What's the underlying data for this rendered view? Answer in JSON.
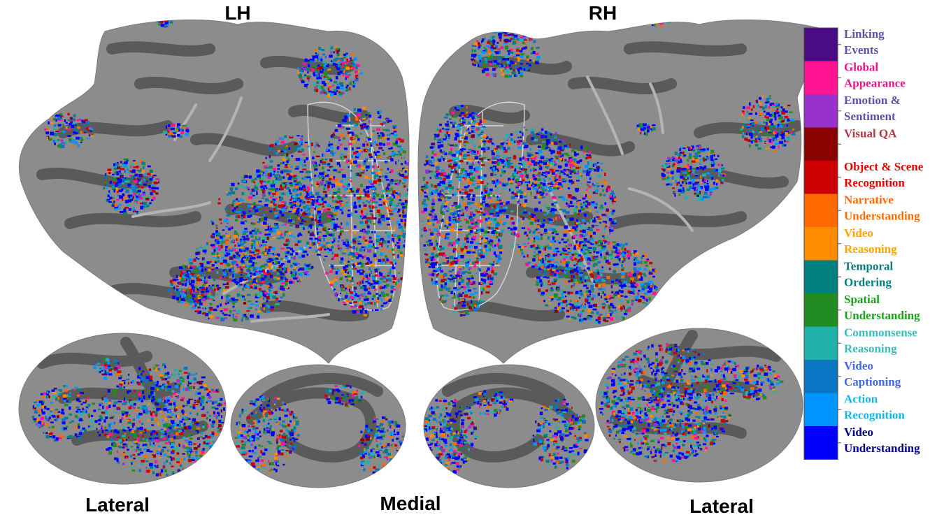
{
  "hemispheres": {
    "left": "LH",
    "right": "RH"
  },
  "views": {
    "lateral_left": "Lateral",
    "medial": "Medial",
    "lateral_right": "Lateral"
  },
  "legend": [
    {
      "line1": "Linking",
      "line2": "Events",
      "swatch": "#4b0a86",
      "text_color": "#5a52a8"
    },
    {
      "line1": "Global",
      "line2": "Appearance",
      "swatch": "#ff1493",
      "text_color": "#e8178a"
    },
    {
      "line1": "Emotion &",
      "line2": "Sentiment",
      "swatch": "#9932cc",
      "text_color": "#5a52a8"
    },
    {
      "line1": "Visual QA",
      "line2": "",
      "swatch": "#8b0000",
      "text_color": "#b03a48"
    },
    {
      "line1": "Object & Scene",
      "line2": "Recognition",
      "swatch": "#cc0000",
      "text_color": "#e60000"
    },
    {
      "line1": "Narrative",
      "line2": "Understanding",
      "swatch": "#ff6a00",
      "text_color": "#ff6a00"
    },
    {
      "line1": "Video",
      "line2": "Reasoning",
      "swatch": "#ff8c00",
      "text_color": "#ffa500"
    },
    {
      "line1": "Temporal",
      "line2": "Ordering",
      "swatch": "#008080",
      "text_color": "#008080"
    },
    {
      "line1": "Spatial",
      "line2": "Understanding",
      "swatch": "#228b22",
      "text_color": "#1ea01e"
    },
    {
      "line1": "Commonsense",
      "line2": "Reasoning",
      "swatch": "#20b2aa",
      "text_color": "#3cbcbc"
    },
    {
      "line1": "Video",
      "line2": "Captioning",
      "swatch": "#0a75c2",
      "text_color": "#4169e1"
    },
    {
      "line1": "Action",
      "line2": "Recognition",
      "swatch": "#0096ff",
      "text_color": "#18b4e6"
    },
    {
      "line1": "Video",
      "line2": "Understanding",
      "swatch": "#0000ff",
      "text_color": "#00008b"
    }
  ],
  "colors": {
    "cortex_light": "#8c8c8c",
    "cortex_dark": "#5a5a5a",
    "roi_outline": "#d9d9d9"
  }
}
